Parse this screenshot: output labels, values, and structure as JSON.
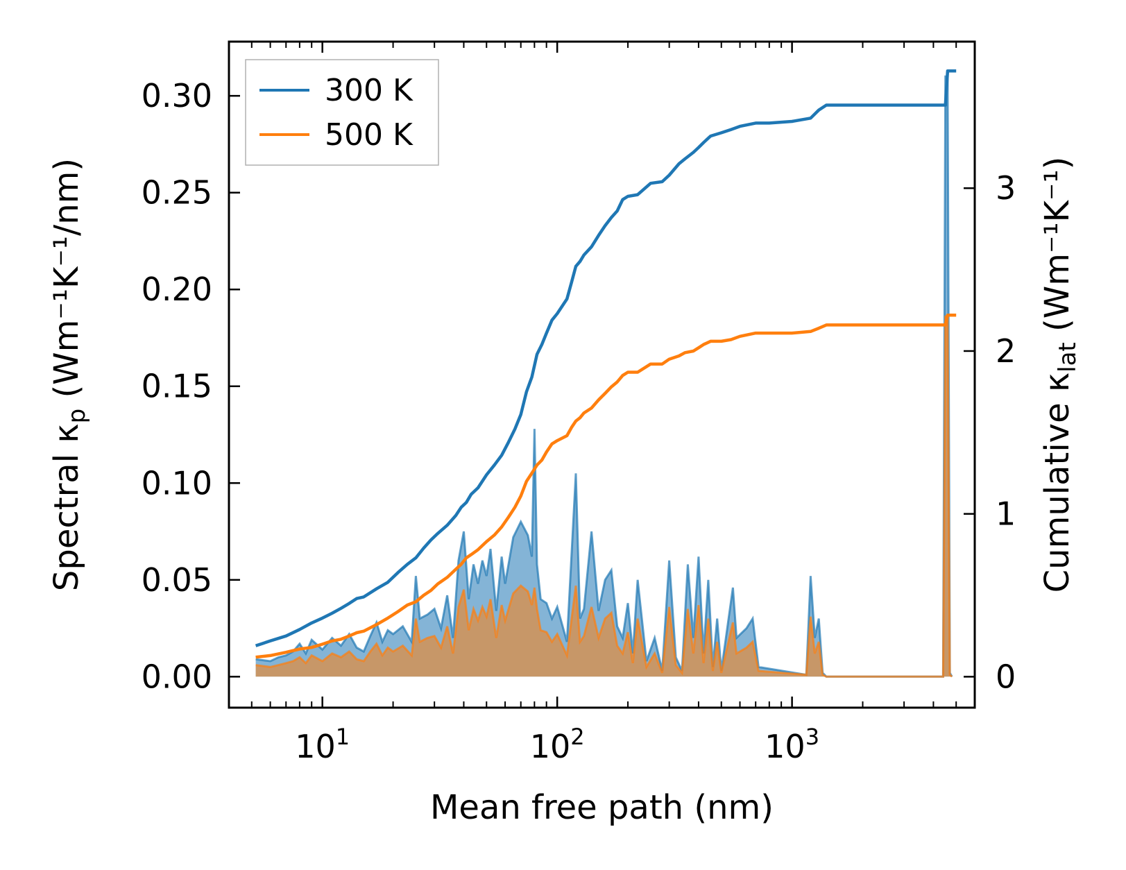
{
  "chart_data": {
    "type": "line",
    "xlabel": "Mean free path (nm)",
    "x_scale": "log",
    "xlim": [
      4,
      6000
    ],
    "x_ticks": [
      {
        "value": 10,
        "label_base": "10",
        "label_exp": "1"
      },
      {
        "value": 100,
        "label_base": "10",
        "label_exp": "2"
      },
      {
        "value": 1000,
        "label_base": "10",
        "label_exp": "3"
      }
    ],
    "left_axis": {
      "label_main": "Spectral κ",
      "label_sub": "p",
      "label_units": " (Wm⁻¹K⁻¹/nm)",
      "ylim": [
        -0.016,
        0.328
      ],
      "ticks": [
        "0.00",
        "0.05",
        "0.10",
        "0.15",
        "0.20",
        "0.25",
        "0.30"
      ]
    },
    "right_axis": {
      "label_main": "Cumulative κ",
      "label_sub": "lat",
      "label_units": " (Wm⁻¹K⁻¹)",
      "ylim": [
        -0.19,
        3.9
      ],
      "ticks": [
        "0",
        "1",
        "2",
        "3"
      ]
    },
    "legend": {
      "placement": "top-left",
      "entries": [
        {
          "label": "300 K",
          "color": "#1f77b4"
        },
        {
          "label": "500 K",
          "color": "#ff7f0e"
        }
      ]
    },
    "series": [
      {
        "name": "300 K",
        "axis": "right",
        "kind": "cumulative",
        "color": "#1f77b4",
        "x": [
          5.2,
          6,
          7,
          8,
          9,
          10,
          11,
          12,
          13,
          14,
          15,
          17,
          19,
          21,
          23,
          25,
          27,
          29,
          31,
          34,
          37,
          39,
          41,
          43,
          46,
          50,
          54,
          58,
          62,
          66,
          70,
          74,
          78,
          82,
          86,
          90,
          95,
          100,
          110,
          115,
          120,
          125,
          130,
          140,
          150,
          160,
          170,
          180,
          190,
          200,
          220,
          250,
          280,
          300,
          330,
          350,
          380,
          400,
          420,
          450,
          500,
          550,
          600,
          700,
          800,
          1000,
          1200,
          1300,
          1400,
          1500,
          2000,
          3000,
          4500,
          4600,
          4700,
          5000
        ],
        "values": [
          0.19,
          0.22,
          0.25,
          0.29,
          0.33,
          0.36,
          0.39,
          0.42,
          0.45,
          0.48,
          0.49,
          0.54,
          0.58,
          0.64,
          0.69,
          0.73,
          0.79,
          0.84,
          0.88,
          0.93,
          0.99,
          1.04,
          1.07,
          1.12,
          1.16,
          1.24,
          1.3,
          1.36,
          1.44,
          1.52,
          1.61,
          1.75,
          1.84,
          1.98,
          2.04,
          2.11,
          2.19,
          2.23,
          2.32,
          2.42,
          2.52,
          2.55,
          2.59,
          2.64,
          2.71,
          2.77,
          2.82,
          2.86,
          2.93,
          2.95,
          2.96,
          3.03,
          3.04,
          3.08,
          3.15,
          3.18,
          3.22,
          3.25,
          3.28,
          3.32,
          3.34,
          3.36,
          3.38,
          3.4,
          3.4,
          3.41,
          3.43,
          3.48,
          3.51,
          3.51,
          3.51,
          3.51,
          3.51,
          3.72,
          3.72,
          3.72
        ],
        "spectral_x": [
          5.2,
          6,
          6.5,
          7,
          7.5,
          8,
          8.5,
          9,
          10,
          11,
          12,
          13,
          14,
          15,
          16,
          17,
          18,
          19,
          20,
          22,
          24,
          25,
          26,
          28,
          30,
          32,
          34,
          36,
          38,
          40,
          42,
          44,
          46,
          48,
          50,
          52,
          55,
          58,
          60,
          65,
          70,
          75,
          78,
          80,
          82,
          85,
          90,
          95,
          100,
          110,
          120,
          125,
          130,
          140,
          150,
          160,
          170,
          180,
          190,
          200,
          210,
          220,
          240,
          260,
          280,
          300,
          320,
          340,
          360,
          380,
          400,
          420,
          440,
          460,
          480,
          500,
          560,
          580,
          640,
          680,
          720,
          1150,
          1200,
          1250,
          1300,
          1350,
          1400,
          4400,
          4500,
          4600,
          4700,
          4800
        ],
        "spectral_values": [
          0.009,
          0.008,
          0.01,
          0.011,
          0.013,
          0.017,
          0.012,
          0.019,
          0.014,
          0.02,
          0.016,
          0.022,
          0.015,
          0.013,
          0.021,
          0.028,
          0.018,
          0.024,
          0.022,
          0.026,
          0.018,
          0.052,
          0.03,
          0.032,
          0.035,
          0.025,
          0.042,
          0.02,
          0.06,
          0.075,
          0.04,
          0.058,
          0.048,
          0.06,
          0.052,
          0.066,
          0.034,
          0.062,
          0.048,
          0.072,
          0.08,
          0.073,
          0.062,
          0.128,
          0.058,
          0.04,
          0.038,
          0.03,
          0.036,
          0.018,
          0.105,
          0.03,
          0.035,
          0.075,
          0.034,
          0.05,
          0.055,
          0.026,
          0.02,
          0.038,
          0.012,
          0.05,
          0.008,
          0.02,
          0.003,
          0.06,
          0.01,
          0.003,
          0.058,
          0.02,
          0.062,
          0.012,
          0.05,
          0.005,
          0.03,
          0.003,
          0.046,
          0.02,
          0.025,
          0.03,
          0.005,
          0.001,
          0.052,
          0.02,
          0.03,
          0.002,
          0.0,
          0.0,
          0.31,
          0.31,
          0.002,
          0.0
        ]
      },
      {
        "name": "500 K",
        "axis": "right",
        "kind": "cumulative",
        "color": "#ff7f0e",
        "x": [
          5.2,
          6,
          7,
          8,
          9,
          10,
          11,
          12,
          13,
          14,
          15,
          17,
          19,
          21,
          23,
          25,
          27,
          29,
          31,
          34,
          37,
          39,
          41,
          43,
          46,
          50,
          54,
          58,
          62,
          66,
          70,
          74,
          78,
          82,
          86,
          90,
          95,
          100,
          110,
          115,
          120,
          125,
          130,
          140,
          150,
          160,
          170,
          180,
          190,
          200,
          220,
          250,
          280,
          300,
          330,
          350,
          380,
          400,
          420,
          450,
          500,
          550,
          600,
          700,
          800,
          1000,
          1200,
          1300,
          1400,
          1500,
          2000,
          3000,
          4500,
          4600,
          4700,
          5000
        ],
        "values": [
          0.12,
          0.13,
          0.15,
          0.17,
          0.18,
          0.2,
          0.22,
          0.23,
          0.25,
          0.27,
          0.28,
          0.32,
          0.36,
          0.4,
          0.44,
          0.46,
          0.5,
          0.53,
          0.57,
          0.61,
          0.66,
          0.69,
          0.73,
          0.75,
          0.78,
          0.83,
          0.87,
          0.92,
          0.98,
          1.04,
          1.11,
          1.2,
          1.25,
          1.3,
          1.33,
          1.38,
          1.43,
          1.45,
          1.48,
          1.53,
          1.57,
          1.59,
          1.62,
          1.65,
          1.7,
          1.74,
          1.78,
          1.81,
          1.85,
          1.87,
          1.87,
          1.92,
          1.92,
          1.95,
          1.97,
          1.99,
          2.0,
          2.02,
          2.04,
          2.06,
          2.06,
          2.07,
          2.09,
          2.11,
          2.11,
          2.11,
          2.12,
          2.14,
          2.16,
          2.16,
          2.16,
          2.16,
          2.16,
          2.22,
          2.22,
          2.22
        ],
        "spectral_x": [
          5.2,
          6,
          6.5,
          7,
          7.5,
          8,
          8.5,
          9,
          10,
          11,
          12,
          13,
          14,
          15,
          16,
          17,
          18,
          19,
          20,
          22,
          24,
          25,
          26,
          28,
          30,
          32,
          34,
          36,
          38,
          40,
          42,
          44,
          46,
          48,
          50,
          52,
          55,
          58,
          60,
          65,
          70,
          75,
          78,
          80,
          82,
          85,
          90,
          95,
          100,
          110,
          120,
          125,
          130,
          140,
          150,
          160,
          170,
          180,
          190,
          200,
          210,
          220,
          240,
          260,
          280,
          300,
          320,
          340,
          360,
          380,
          400,
          420,
          440,
          460,
          480,
          500,
          560,
          580,
          640,
          680,
          720,
          1150,
          1200,
          1250,
          1300,
          1350,
          1400,
          4400,
          4500,
          4600,
          4700,
          4800
        ],
        "spectral_values": [
          0.006,
          0.005,
          0.006,
          0.007,
          0.008,
          0.01,
          0.007,
          0.011,
          0.008,
          0.012,
          0.01,
          0.013,
          0.009,
          0.008,
          0.013,
          0.017,
          0.011,
          0.015,
          0.013,
          0.016,
          0.011,
          0.03,
          0.018,
          0.02,
          0.021,
          0.015,
          0.026,
          0.012,
          0.036,
          0.045,
          0.024,
          0.035,
          0.029,
          0.036,
          0.031,
          0.04,
          0.02,
          0.037,
          0.029,
          0.043,
          0.047,
          0.044,
          0.037,
          0.046,
          0.035,
          0.024,
          0.023,
          0.018,
          0.022,
          0.011,
          0.047,
          0.018,
          0.021,
          0.036,
          0.02,
          0.03,
          0.033,
          0.016,
          0.012,
          0.023,
          0.007,
          0.03,
          0.005,
          0.012,
          0.002,
          0.036,
          0.006,
          0.002,
          0.035,
          0.012,
          0.037,
          0.007,
          0.03,
          0.003,
          0.018,
          0.002,
          0.028,
          0.012,
          0.015,
          0.018,
          0.003,
          0.001,
          0.031,
          0.012,
          0.018,
          0.001,
          0.0,
          0.0,
          0.186,
          0.186,
          0.001,
          0.0
        ]
      }
    ]
  }
}
